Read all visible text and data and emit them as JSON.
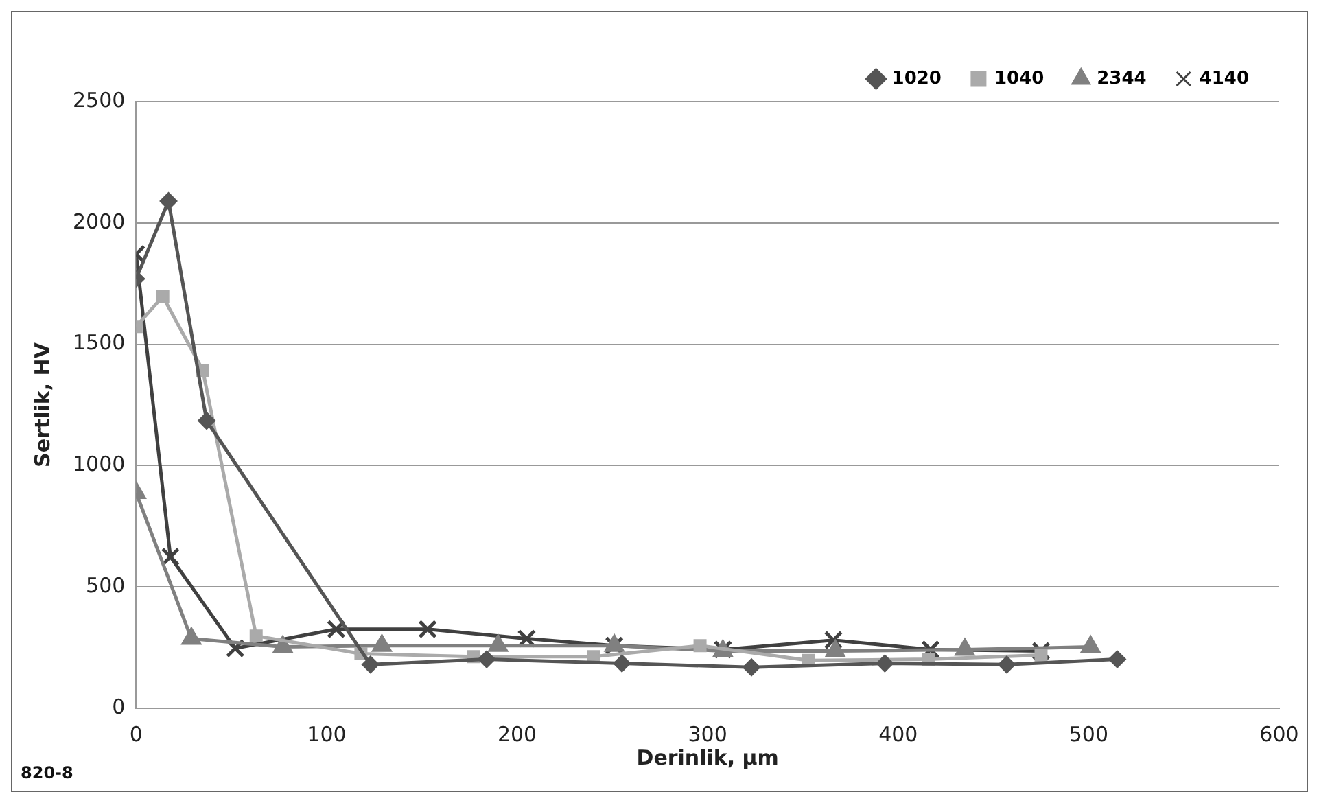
{
  "chart_data": {
    "type": "line",
    "xlabel": "Derinlik, µm",
    "ylabel": "Sertlik, HV",
    "xlim": [
      0,
      600
    ],
    "xticks": [
      0,
      100,
      200,
      300,
      400,
      500,
      600
    ],
    "ylim": [
      0,
      2500
    ],
    "yticks": [
      0,
      500,
      1000,
      1500,
      2000,
      2500
    ],
    "grid": "y",
    "legend": "top right",
    "annotations": [
      "820-8"
    ],
    "series": [
      {
        "name": "1020",
        "color": "#555555",
        "marker": "diamond",
        "x": [
          0,
          17,
          37,
          123,
          184,
          255,
          323,
          393,
          457,
          515
        ],
        "values": [
          1770,
          2090,
          1185,
          180,
          202,
          185,
          169,
          185,
          180,
          202
        ]
      },
      {
        "name": "1040",
        "color": "#aaaaaa",
        "marker": "square",
        "x": [
          0,
          14,
          35,
          63,
          118,
          177,
          240,
          296,
          353,
          416,
          475
        ],
        "values": [
          1573,
          1697,
          1393,
          298,
          225,
          213,
          213,
          258,
          197,
          202,
          219
        ]
      },
      {
        "name": "2344",
        "color": "#808080",
        "marker": "triangle",
        "x": [
          0,
          29,
          77,
          129,
          190,
          251,
          308,
          367,
          435,
          501
        ],
        "values": [
          888,
          287,
          253,
          258,
          258,
          258,
          236,
          236,
          242,
          253
        ]
      },
      {
        "name": "4140",
        "color": "#404040",
        "marker": "cross",
        "x": [
          0,
          18,
          52,
          105,
          153,
          205,
          251,
          308,
          366,
          417,
          475
        ],
        "values": [
          1871,
          624,
          247,
          326,
          326,
          287,
          258,
          242,
          281,
          242,
          236
        ]
      }
    ]
  }
}
